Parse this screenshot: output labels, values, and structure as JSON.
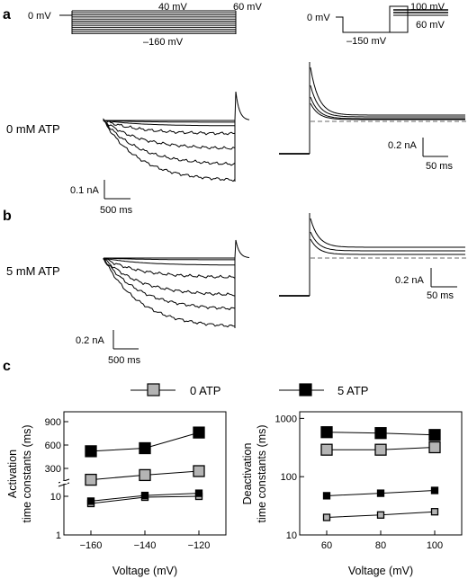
{
  "panels": {
    "a": "a",
    "b": "b",
    "c": "c"
  },
  "protocol_left": {
    "holding": "0 mV",
    "step_top": "40 mV",
    "step_bottom": "–160 mV",
    "tail": "60 mV"
  },
  "protocol_right": {
    "holding": "0 mV",
    "prepulse": "–150 mV",
    "tail_top": "100 mV",
    "tail_bottom": "60 mV"
  },
  "row_a": {
    "condition": "0 mM ATP",
    "left_scale": {
      "current": "0.1 nA",
      "time": "500 ms"
    },
    "right_scale": {
      "current": "0.2 nA",
      "time": "50 ms"
    }
  },
  "row_b": {
    "condition": "5 mM ATP",
    "left_scale": {
      "current": "0.2 nA",
      "time": "500 ms"
    },
    "right_scale": {
      "current": "0.2 nA",
      "time": "50 ms"
    }
  },
  "legend": [
    {
      "name": "0 ATP",
      "color": "#b4b4b4"
    },
    {
      "name": "5 ATP",
      "color": "#000000"
    }
  ],
  "chart_data": [
    {
      "type": "scatter",
      "ylabel": "Activation time constants (ms)",
      "ylabel_lines": [
        "Activation",
        "time constants (ms)"
      ],
      "xlabel": "Voltage (mV)",
      "x": [
        -160,
        -140,
        -120
      ],
      "xlim": [
        -170,
        -110
      ],
      "ylog": true,
      "axis_break": true,
      "y_ticks": [
        "1",
        "10",
        "300",
        "600",
        "900"
      ],
      "x_ticks": [
        "-160",
        "-140",
        "-120"
      ],
      "series": [
        {
          "name": "0 ATP",
          "component": "slow",
          "values": [
            155,
            215,
            265
          ],
          "fill": "#b4b4b4"
        },
        {
          "name": "5 ATP",
          "component": "slow",
          "values": [
            520,
            560,
            760
          ],
          "fill": "#000000"
        },
        {
          "name": "0 ATP",
          "component": "fast",
          "values": [
            6.5,
            9.5,
            10
          ],
          "fill": "#b4b4b4"
        },
        {
          "name": "5 ATP",
          "component": "fast",
          "values": [
            7.5,
            10.5,
            12
          ],
          "fill": "#000000"
        }
      ]
    },
    {
      "type": "scatter",
      "ylabel": "Deactivation time constants (ms)",
      "ylabel_lines": [
        "Deactivation",
        "time constants (ms)"
      ],
      "xlabel": "Voltage (mV)",
      "x": [
        60,
        80,
        100
      ],
      "xlim": [
        50,
        110
      ],
      "ylog": true,
      "ylim": [
        10,
        1300
      ],
      "y_ticks": [
        "10",
        "100",
        "1000"
      ],
      "x_ticks": [
        "60",
        "80",
        "100"
      ],
      "series": [
        {
          "name": "5 ATP",
          "component": "slow",
          "values": [
            580,
            560,
            520
          ],
          "fill": "#000000"
        },
        {
          "name": "0 ATP",
          "component": "slow",
          "values": [
            290,
            290,
            320
          ],
          "fill": "#b4b4b4"
        },
        {
          "name": "5 ATP",
          "component": "fast",
          "values": [
            47,
            52,
            58
          ],
          "fill": "#000000"
        },
        {
          "name": "0 ATP",
          "component": "fast",
          "values": [
            20,
            22,
            25
          ],
          "fill": "#b4b4b4"
        }
      ]
    }
  ]
}
